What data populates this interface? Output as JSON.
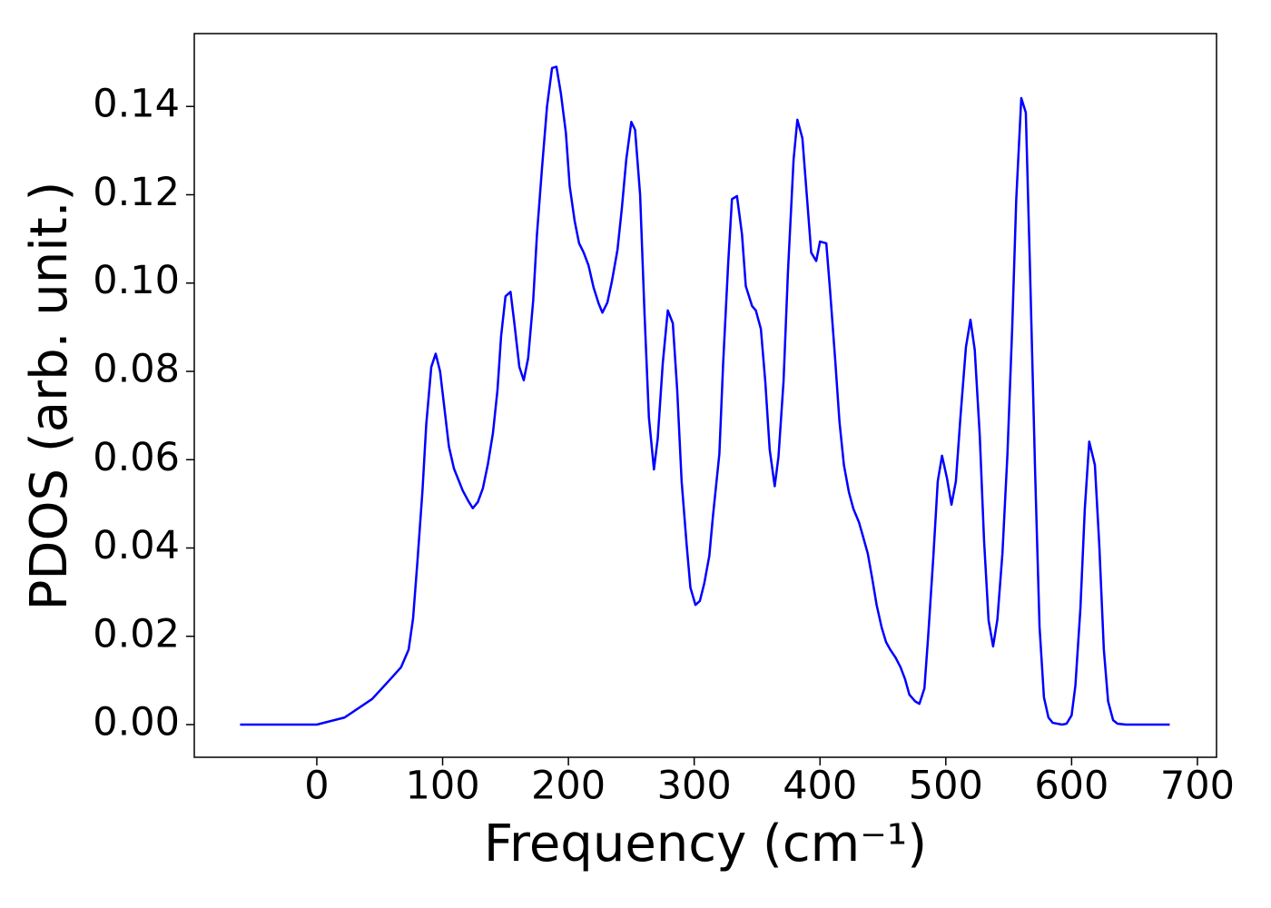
{
  "chart_data": {
    "type": "line",
    "x_label": "Frequency (cm⁻¹)",
    "y_label": "PDOS (arb. unit.)",
    "x": [
      -61,
      0,
      22,
      44,
      58.5,
      67,
      73,
      76.5,
      80,
      84,
      87,
      91,
      94.5,
      98,
      105,
      109,
      116,
      120.5,
      124,
      128,
      132,
      136,
      140,
      143.6,
      146.5,
      150,
      154,
      157,
      161,
      164.5,
      168,
      172,
      175,
      179,
      183,
      187,
      190.5,
      194,
      198,
      201,
      205,
      208.5,
      212,
      216,
      220,
      224,
      227,
      231,
      234.5,
      239,
      242.5,
      246,
      250,
      253,
      257,
      260.5,
      264,
      268,
      271,
      275,
      279,
      283,
      286.5,
      290,
      294,
      297,
      301,
      304.5,
      308,
      312,
      315,
      320,
      323,
      327,
      330,
      334,
      338,
      341,
      346,
      349,
      353,
      356.5,
      360,
      364,
      367,
      371,
      374.5,
      379,
      382,
      386,
      389.5,
      393,
      397,
      400,
      405,
      408,
      412,
      415.5,
      419,
      423,
      426.5,
      431,
      434,
      438,
      441.5,
      445,
      449,
      452.5,
      456,
      460,
      464,
      467.6,
      471,
      475.5,
      479,
      483,
      486,
      490,
      493.6,
      497,
      501,
      504.5,
      508,
      511.6,
      516,
      519.6,
      523,
      527,
      530.4,
      534,
      537.6,
      541,
      545,
      549,
      552.8,
      556,
      560,
      563.6,
      567,
      571,
      574.5,
      578,
      581.6,
      585,
      592.5,
      596,
      600,
      603,
      607,
      610.5,
      614,
      618.5,
      622,
      625.6,
      629,
      633,
      636.5,
      643,
      678
    ],
    "series": [
      {
        "name": "PDOS",
        "color": "#0000ff",
        "values": [
          0,
          0,
          0.0016,
          0.0058,
          0.0103,
          0.013,
          0.017,
          0.024,
          0.037,
          0.053,
          0.068,
          0.081,
          0.084,
          0.08,
          0.063,
          0.058,
          0.053,
          0.0506,
          0.049,
          0.0504,
          0.0535,
          0.059,
          0.066,
          0.0757,
          0.088,
          0.097,
          0.098,
          0.091,
          0.081,
          0.078,
          0.083,
          0.096,
          0.111,
          0.126,
          0.14,
          0.1487,
          0.149,
          0.143,
          0.134,
          0.122,
          0.114,
          0.109,
          0.107,
          0.104,
          0.099,
          0.0954,
          0.0933,
          0.0956,
          0.1003,
          0.1075,
          0.117,
          0.128,
          0.1365,
          0.1347,
          0.12,
          0.0931,
          0.0695,
          0.0578,
          0.0648,
          0.0818,
          0.0938,
          0.0909,
          0.0757,
          0.0551,
          0.0407,
          0.031,
          0.0271,
          0.028,
          0.032,
          0.0382,
          0.0475,
          0.0613,
          0.0818,
          0.1044,
          0.119,
          0.1197,
          0.111,
          0.0993,
          0.0948,
          0.0938,
          0.0896,
          0.0777,
          0.0623,
          0.054,
          0.0607,
          0.0777,
          0.1024,
          0.128,
          0.137,
          0.1328,
          0.1199,
          0.1069,
          0.105,
          0.1094,
          0.109,
          0.0983,
          0.0829,
          0.0685,
          0.0588,
          0.0526,
          0.0489,
          0.0458,
          0.0428,
          0.0387,
          0.0331,
          0.0271,
          0.022,
          0.0187,
          0.0169,
          0.0152,
          0.013,
          0.0103,
          0.0068,
          0.0053,
          0.0047,
          0.0082,
          0.0201,
          0.0376,
          0.0551,
          0.0609,
          0.0557,
          0.0498,
          0.0551,
          0.0695,
          0.0855,
          0.0917,
          0.0849,
          0.0654,
          0.0417,
          0.0236,
          0.0177,
          0.0238,
          0.0387,
          0.0613,
          0.09,
          0.119,
          0.1419,
          0.1386,
          0.1024,
          0.0572,
          0.0222,
          0.0062,
          0.0016,
          0.0004,
          0,
          0.0002,
          0.0021,
          0.0088,
          0.0263,
          0.0489,
          0.0641,
          0.0588,
          0.0407,
          0.0171,
          0.0053,
          0.001,
          0.0002,
          0,
          0
        ]
      }
    ],
    "xlim": [
      -97.4,
      715.2
    ],
    "ylim": [
      -0.0074,
      0.1565
    ],
    "xticks": [
      0,
      100,
      200,
      300,
      400,
      500,
      600,
      700
    ],
    "yticks": [
      {
        "value": 0,
        "label": "0.00"
      },
      {
        "value": 0.02,
        "label": "0.02"
      },
      {
        "value": 0.04,
        "label": "0.04"
      },
      {
        "value": 0.06,
        "label": "0.06"
      },
      {
        "value": 0.08,
        "label": "0.08"
      },
      {
        "value": 0.1,
        "label": "0.10"
      },
      {
        "value": 0.12,
        "label": "0.12"
      },
      {
        "value": 0.14,
        "label": "0.14"
      }
    ],
    "grid": false
  }
}
